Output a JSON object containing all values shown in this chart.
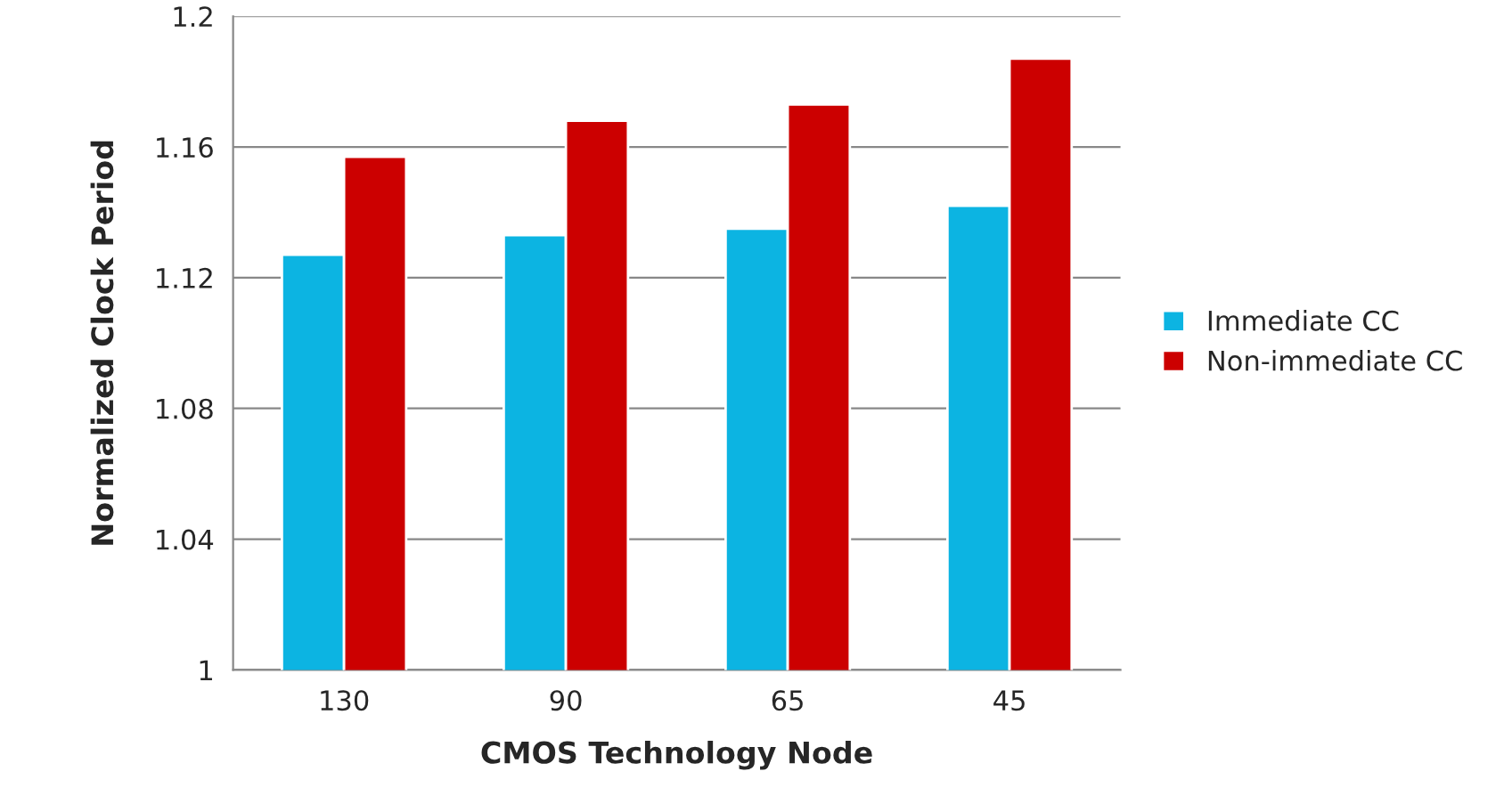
{
  "chart_data": {
    "type": "bar",
    "xlabel": "CMOS Technology Node",
    "ylabel": "Normalized Clock Period",
    "categories": [
      "130",
      "90",
      "65",
      "45"
    ],
    "series": [
      {
        "name": "Immediate CC",
        "color": "#0cb4e2",
        "values": [
          1.127,
          1.133,
          1.135,
          1.142
        ]
      },
      {
        "name": "Non-immediate CC",
        "color": "#cc0000",
        "values": [
          1.157,
          1.168,
          1.173,
          1.187
        ]
      }
    ],
    "ylim": [
      1,
      1.2
    ],
    "yticks": [
      {
        "value": 1,
        "label": "1"
      },
      1.04,
      1.08,
      1.12,
      1.16,
      {
        "value": 1.2,
        "label": "1.2"
      }
    ],
    "grid": "y",
    "legend": "right"
  }
}
